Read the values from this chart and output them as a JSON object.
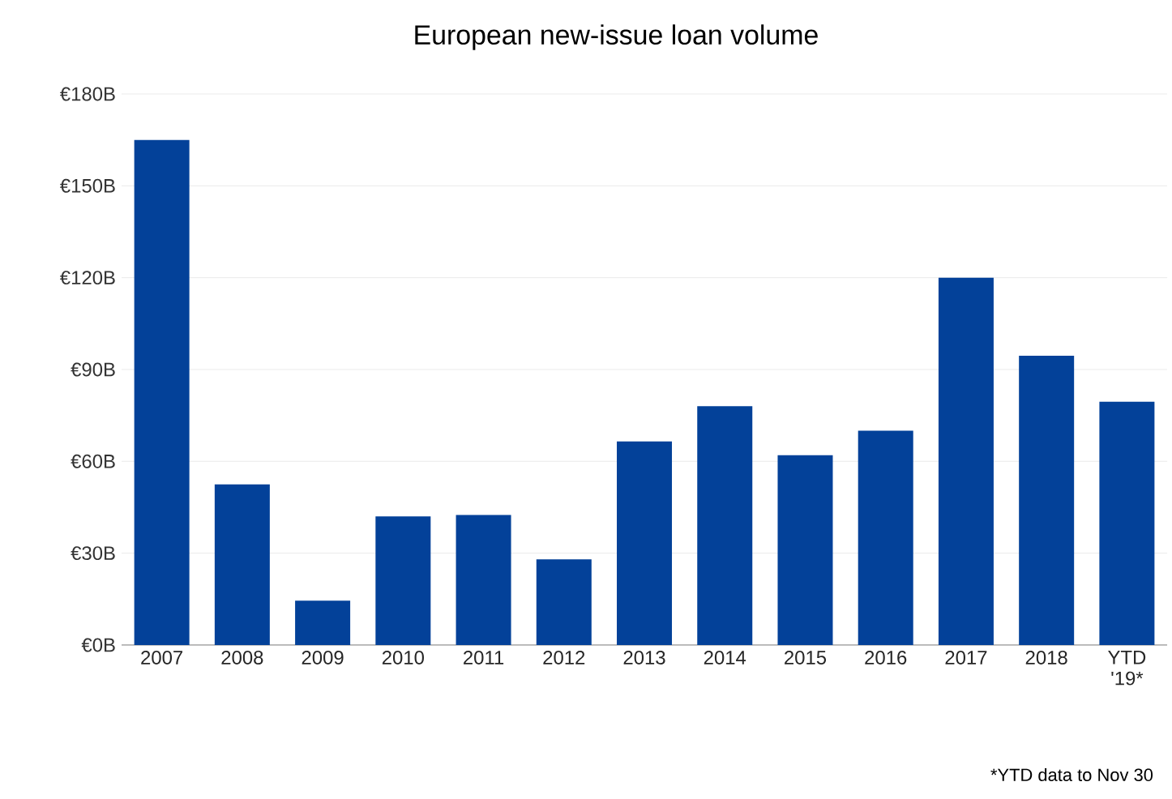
{
  "chart_data": {
    "type": "bar",
    "title": "European new-issue loan volume",
    "categories": [
      "2007",
      "2008",
      "2009",
      "2010",
      "2011",
      "2012",
      "2013",
      "2014",
      "2015",
      "2016",
      "2017",
      "2018",
      "YTD '19*"
    ],
    "values": [
      165,
      52.5,
      14.5,
      42,
      42.5,
      28,
      66.5,
      78,
      62,
      70,
      120,
      94.5,
      79.5
    ],
    "color": "#034199",
    "ylim": [
      0,
      180
    ],
    "yticks": [
      {
        "value": 0,
        "label": "€0B"
      },
      {
        "value": 30,
        "label": "€30B"
      },
      {
        "value": 60,
        "label": "€60B"
      },
      {
        "value": 90,
        "label": "€90B"
      },
      {
        "value": 120,
        "label": "€120B"
      },
      {
        "value": 150,
        "label": "€150B"
      },
      {
        "value": 180,
        "label": "€180B"
      }
    ],
    "grid": "y",
    "annotations": [
      "*YTD data to Nov 30"
    ]
  }
}
